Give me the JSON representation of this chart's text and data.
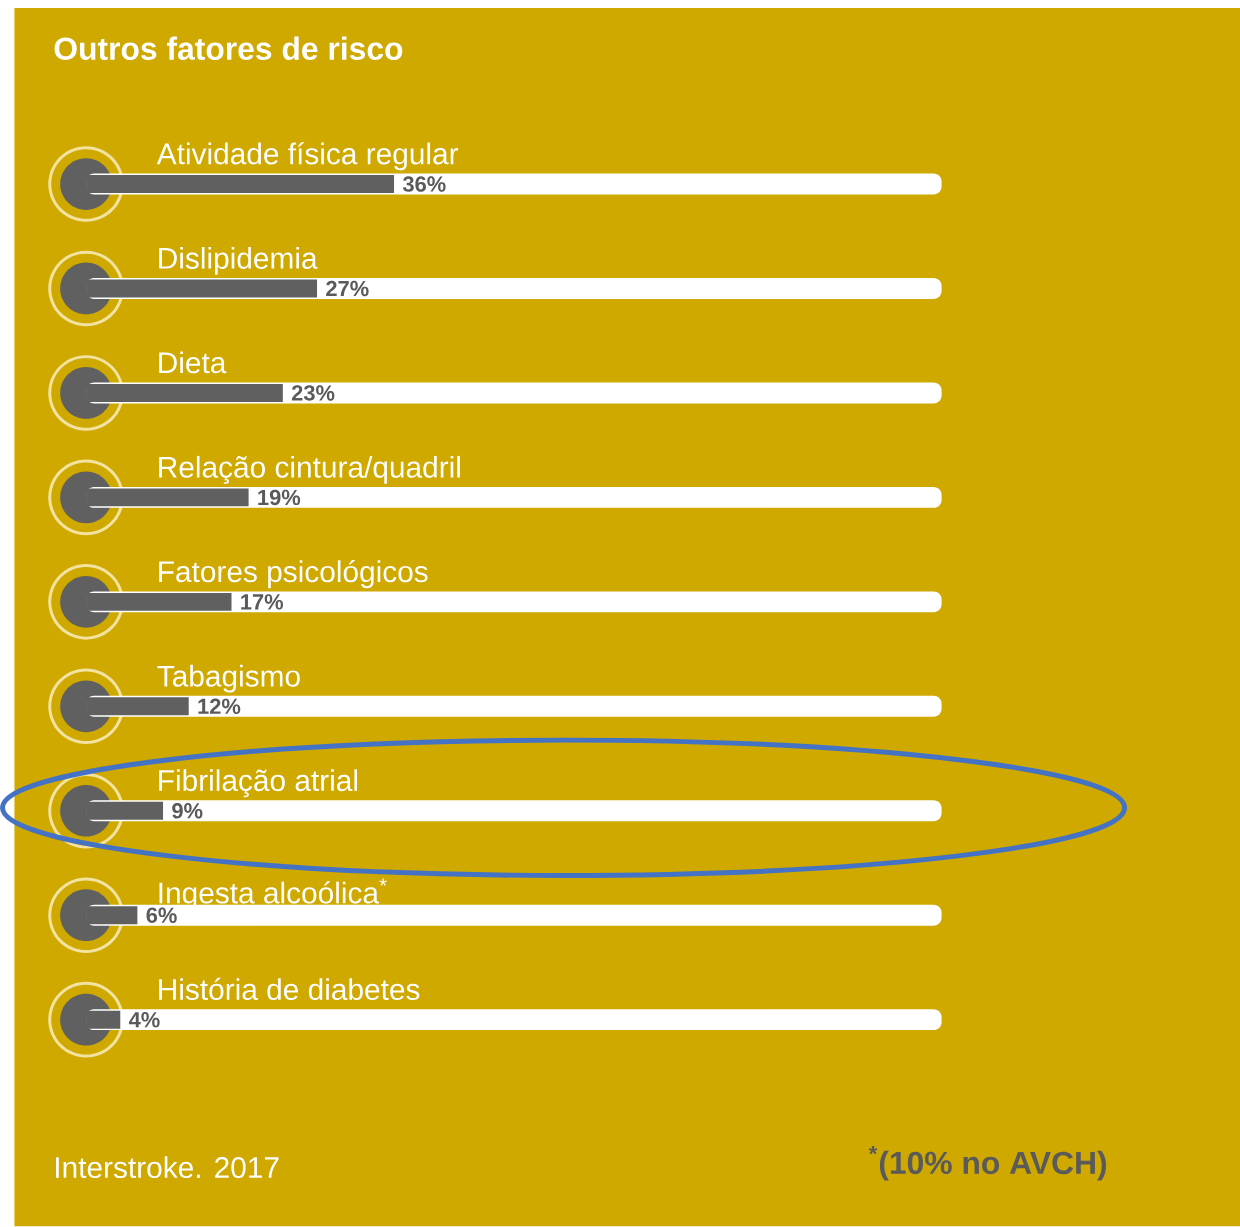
{
  "chart_data": {
    "type": "bar",
    "orientation": "horizontal",
    "title": "Outros fatores de risco",
    "categories": [
      "Atividade física regular",
      "Dislipidemia",
      "Dieta",
      "Relação cintura/quadril",
      "Fatores psicológicos",
      "Tabagismo",
      "Fibrilação atrial",
      "Ingesta alcoólica$^{*}$",
      "História de diabetes"
    ],
    "values": [
      36,
      27,
      23,
      19,
      17,
      12,
      9,
      6,
      4
    ],
    "value_labels": [
      "36%",
      "27%",
      "23%",
      "19%",
      "17%",
      "12%",
      "9%",
      "6%",
      "4%"
    ],
    "color": "#606060",
    "xlim": [
      0,
      100
    ],
    "annotations": [
      "Interstroke. 2017",
      "$^{*}$(10% no AVCH)"
    ]
  }
}
